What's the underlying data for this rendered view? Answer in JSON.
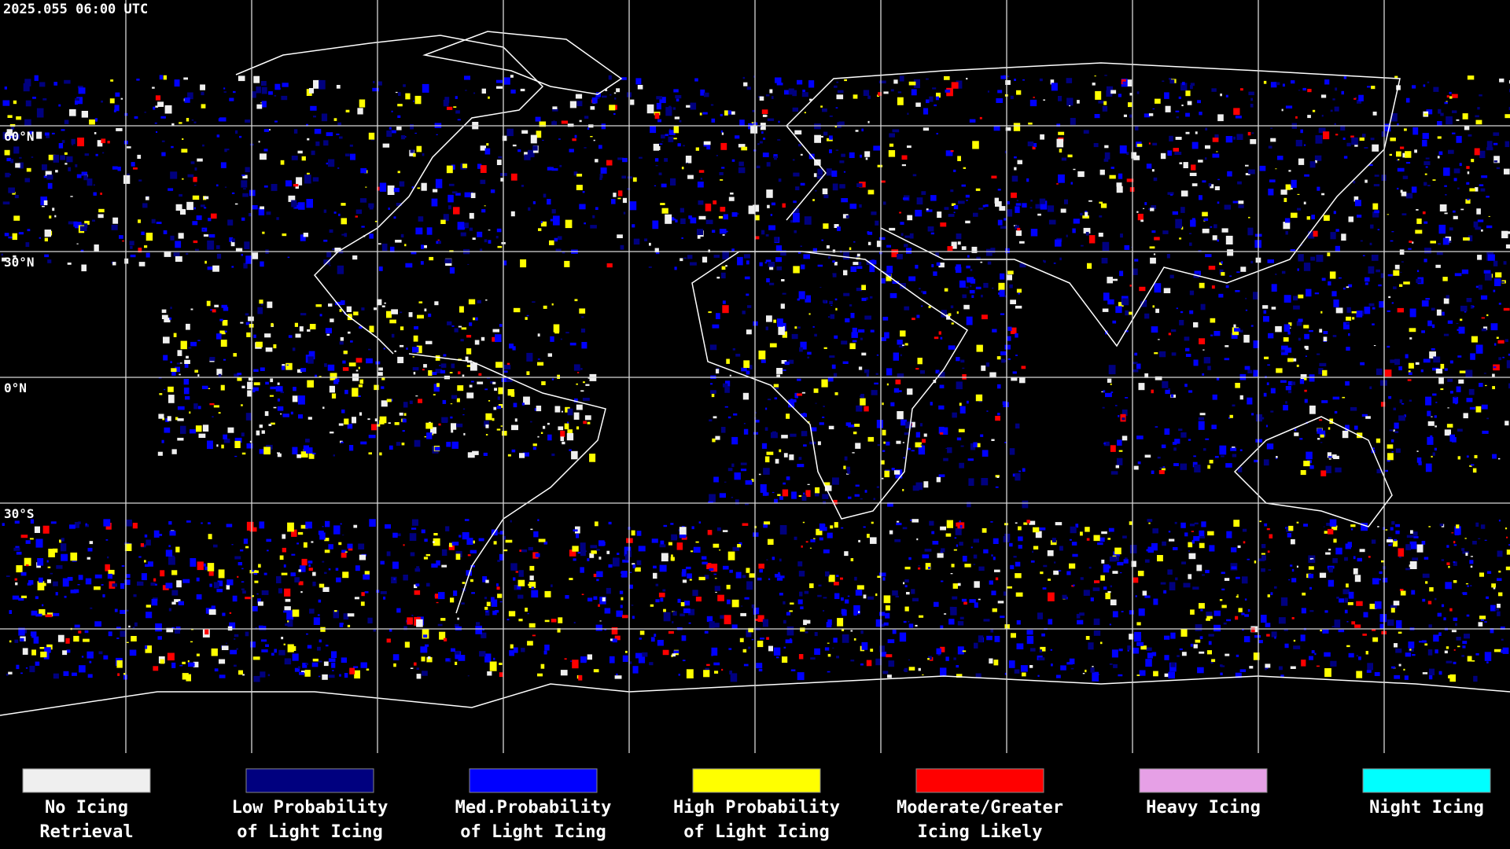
{
  "timestamp": "2025.055 06:00 UTC",
  "latitude_labels": [
    "60°N",
    "30°N",
    "0°N",
    "30°S"
  ],
  "legend": [
    {
      "lines": [
        "No Icing",
        "Retrieval"
      ],
      "color": "#efefef"
    },
    {
      "lines": [
        "Low Probability",
        "of Light Icing"
      ],
      "color": "#00007f"
    },
    {
      "lines": [
        "Med.Probability",
        "of Light Icing"
      ],
      "color": "#0000ff"
    },
    {
      "lines": [
        "High Probability",
        "of Light Icing"
      ],
      "color": "#ffff00"
    },
    {
      "lines": [
        "Moderate/Greater",
        "Icing Likely"
      ],
      "color": "#ff0000"
    },
    {
      "lines": [
        "Heavy Icing"
      ],
      "color": "#e6a0e6"
    },
    {
      "lines": [
        "Night Icing"
      ],
      "color": "#00ffff"
    }
  ]
}
